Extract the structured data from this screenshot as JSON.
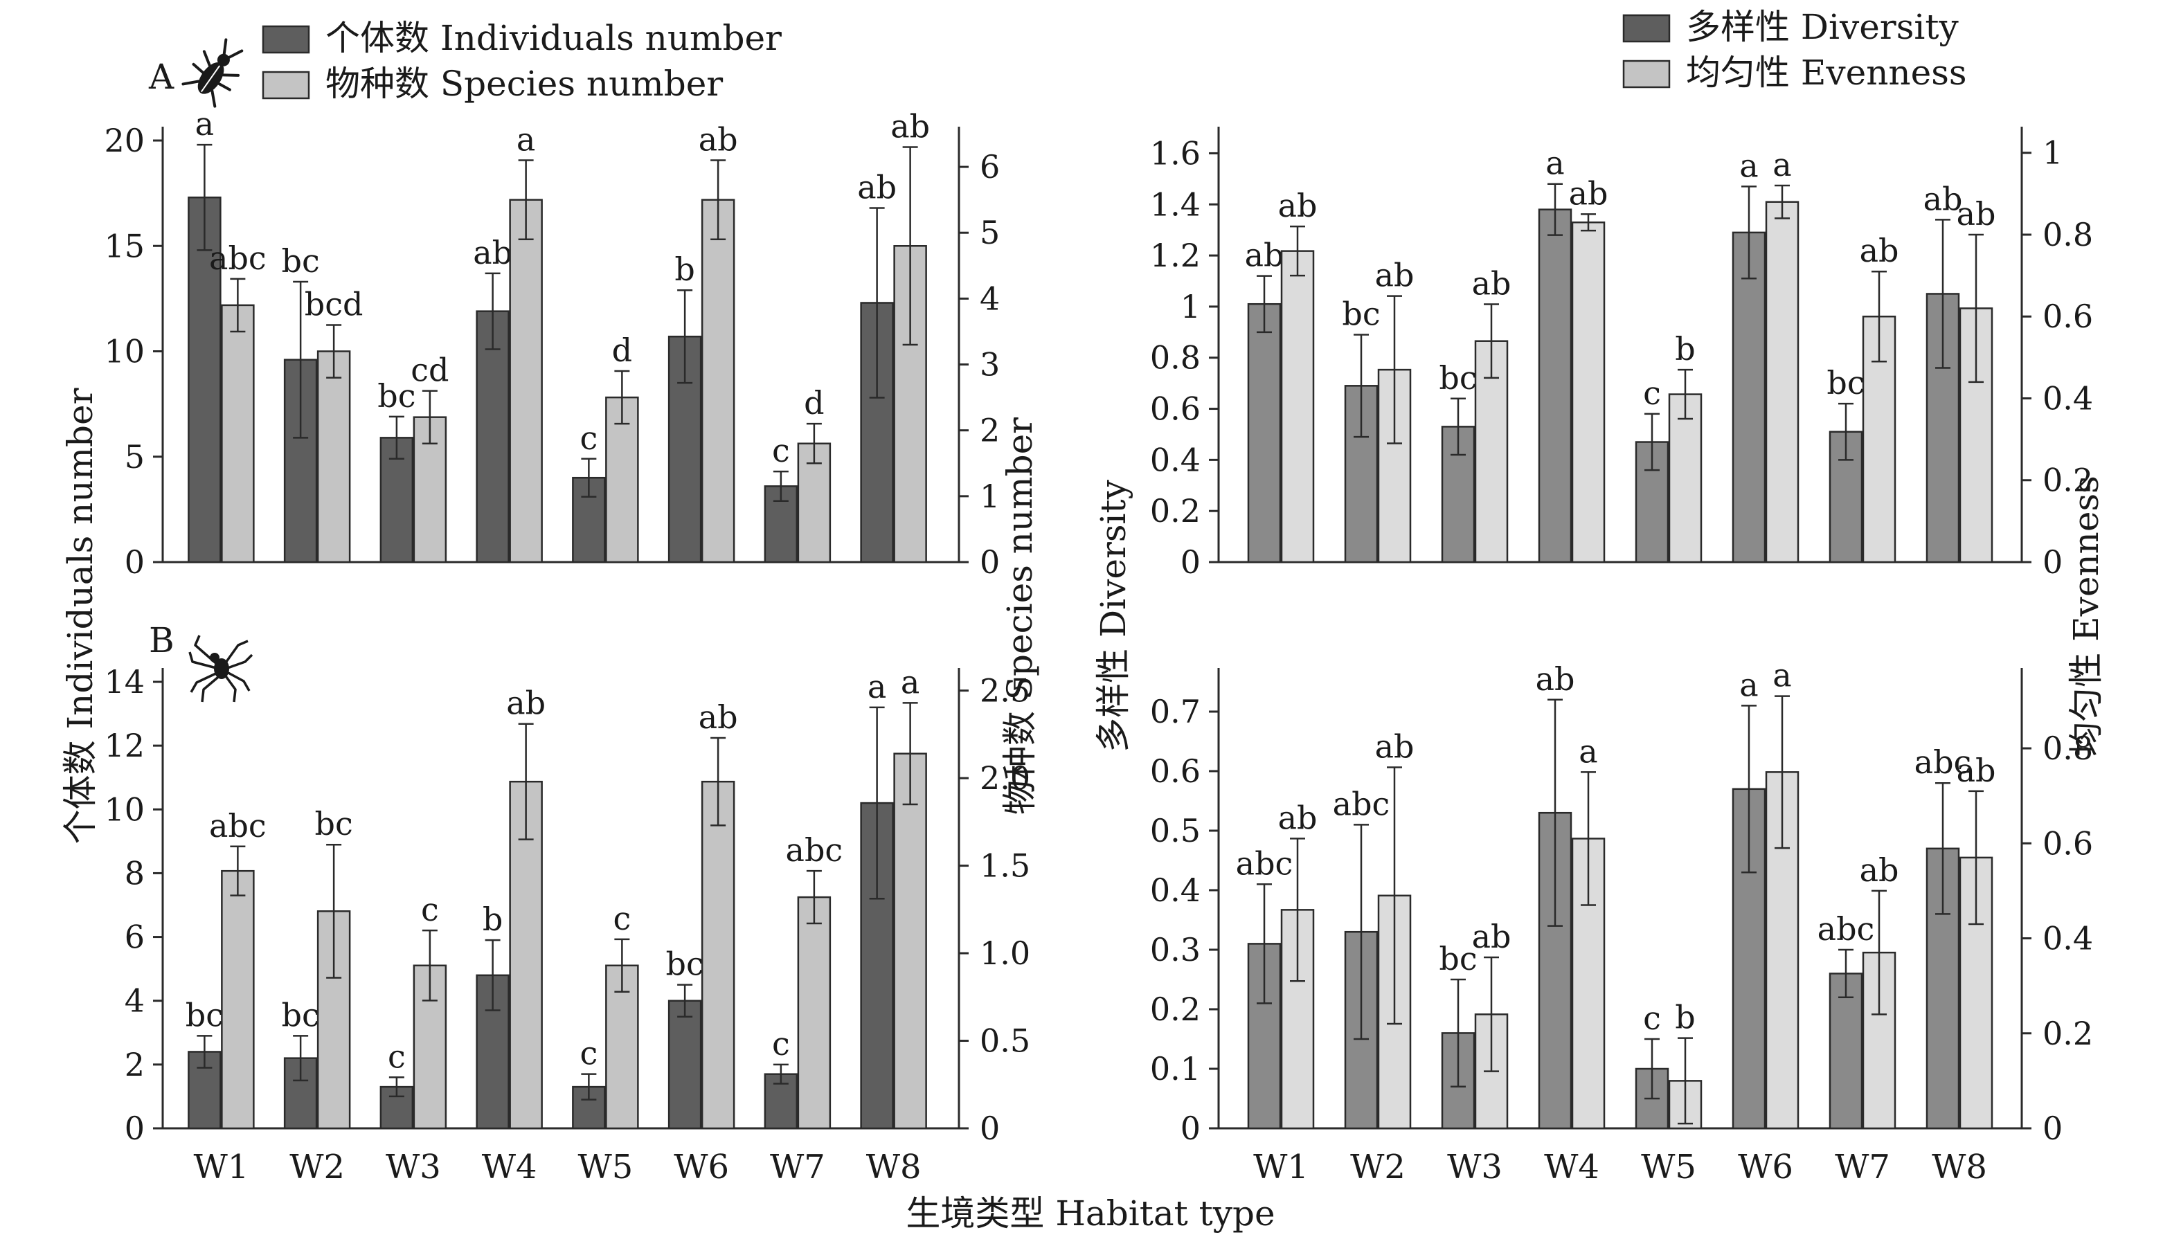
{
  "colors": {
    "dark": "#5e5e5e",
    "light": "#c4c4c4",
    "dark_div": "#8a8a8a",
    "light_div": "#dcdcdc",
    "ink": "#2a2a2a"
  },
  "icons": {
    "panel_a": "beetle-icon",
    "panel_b": "spider-icon"
  },
  "shared_xlabel": "生境类型 Habitat type",
  "chart_data": [
    {
      "type": "bar",
      "panel": "A",
      "categories": [
        "W1",
        "W2",
        "W3",
        "W4",
        "W5",
        "W6",
        "W7",
        "W8"
      ],
      "left_axis": {
        "label": "个体数 Individuals number",
        "ylim": [
          0,
          20
        ],
        "ticks": [
          0,
          5,
          10,
          15,
          20
        ]
      },
      "right_axis": {
        "label": "物种数 Species number",
        "ylim": [
          0,
          6.4
        ],
        "ticks": [
          0,
          1,
          2,
          3,
          4,
          5,
          6
        ]
      },
      "series": [
        {
          "name": "个体数 Individuals number",
          "axis": "left",
          "values": [
            17.3,
            9.6,
            5.9,
            11.9,
            4.0,
            10.7,
            3.6,
            12.3
          ],
          "errors": [
            2.5,
            3.7,
            1.0,
            1.8,
            0.9,
            2.2,
            0.7,
            4.5
          ],
          "labels": [
            "a",
            "bc",
            "bc",
            "ab",
            "c",
            "b",
            "c",
            "ab"
          ]
        },
        {
          "name": "物种数 Species number",
          "axis": "right",
          "values": [
            3.9,
            3.2,
            2.2,
            5.5,
            2.5,
            5.5,
            1.8,
            4.8
          ],
          "errors": [
            0.4,
            0.4,
            0.4,
            0.6,
            0.4,
            0.6,
            0.3,
            1.5
          ],
          "labels": [
            "abc",
            "bcd",
            "cd",
            "a",
            "d",
            "ab",
            "d",
            "ab"
          ]
        }
      ],
      "legend": [
        "个体数 Individuals number",
        "物种数 Species number"
      ]
    },
    {
      "type": "bar",
      "panel": "A-right",
      "categories": [
        "W1",
        "W2",
        "W3",
        "W4",
        "W5",
        "W6",
        "W7",
        "W8"
      ],
      "left_axis": {
        "label": "多样性 Diversity",
        "ylim": [
          0,
          1.65
        ],
        "ticks": [
          0,
          0.2,
          0.4,
          0.6,
          0.8,
          1.0,
          1.2,
          1.4,
          1.6
        ]
      },
      "right_axis": {
        "label": "均匀性 Evenness",
        "ylim": [
          0,
          1.03
        ],
        "ticks": [
          0,
          0.2,
          0.4,
          0.6,
          0.8,
          1.0
        ]
      },
      "series": [
        {
          "name": "多样性 Diversity",
          "axis": "left",
          "values": [
            1.01,
            0.69,
            0.53,
            1.38,
            0.47,
            1.29,
            0.51,
            1.05
          ],
          "errors": [
            0.11,
            0.2,
            0.11,
            0.1,
            0.11,
            0.18,
            0.11,
            0.29
          ],
          "labels": [
            "ab",
            "bc",
            "bc",
            "a",
            "c",
            "a",
            "bc",
            "ab"
          ]
        },
        {
          "name": "均匀性 Evenness",
          "axis": "right",
          "values": [
            0.76,
            0.47,
            0.54,
            0.83,
            0.41,
            0.88,
            0.6,
            0.62
          ],
          "errors": [
            0.06,
            0.18,
            0.09,
            0.02,
            0.06,
            0.04,
            0.11,
            0.18
          ],
          "labels": [
            "ab",
            "ab",
            "ab",
            "ab",
            "b",
            "a",
            "ab",
            "ab"
          ]
        }
      ],
      "legend": [
        "多样性 Diversity",
        "均匀性 Evenness"
      ]
    },
    {
      "type": "bar",
      "panel": "B",
      "categories": [
        "W1",
        "W2",
        "W3",
        "W4",
        "W5",
        "W6",
        "W7",
        "W8"
      ],
      "left_axis": {
        "label": "个体数 Individuals number",
        "ylim": [
          0,
          14
        ],
        "ticks": [
          0,
          2,
          4,
          6,
          8,
          10,
          12,
          14
        ]
      },
      "right_axis": {
        "label": "物种数 Species number",
        "ylim": [
          0,
          2.55
        ],
        "ticks": [
          "0",
          "0.5",
          "1.0",
          "1.5",
          "2.0",
          "2.5"
        ]
      },
      "series": [
        {
          "name": "个体数 Individuals number",
          "axis": "left",
          "values": [
            2.4,
            2.2,
            1.3,
            4.8,
            1.3,
            4.0,
            1.7,
            10.2
          ],
          "errors": [
            0.5,
            0.7,
            0.3,
            1.1,
            0.4,
            0.5,
            0.3,
            3.0
          ],
          "labels": [
            "bc",
            "bc",
            "c",
            "b",
            "c",
            "bc",
            "c",
            "a"
          ]
        },
        {
          "name": "物种数 Species number",
          "axis": "right",
          "values": [
            1.47,
            1.24,
            0.93,
            1.98,
            0.93,
            1.98,
            1.32,
            2.14
          ],
          "errors": [
            0.14,
            0.38,
            0.2,
            0.33,
            0.15,
            0.25,
            0.15,
            0.29
          ],
          "labels": [
            "abc",
            "bc",
            "c",
            "ab",
            "c",
            "ab",
            "abc",
            "a"
          ]
        }
      ]
    },
    {
      "type": "bar",
      "panel": "B-right",
      "categories": [
        "W1",
        "W2",
        "W3",
        "W4",
        "W5",
        "W6",
        "W7",
        "W8"
      ],
      "left_axis": {
        "label": "多样性 Diversity",
        "ylim": [
          0,
          0.75
        ],
        "ticks": [
          "0",
          "0.1",
          "0.2",
          "0.3",
          "0.4",
          "0.5",
          "0.6",
          "0.7"
        ]
      },
      "right_axis": {
        "label": "均匀性 Evenness",
        "ylim": [
          0,
          0.94
        ],
        "ticks": [
          "0",
          "0.2",
          "0.4",
          "0.6",
          "0.8"
        ]
      },
      "series": [
        {
          "name": "多样性 Diversity",
          "axis": "left",
          "values": [
            0.31,
            0.33,
            0.16,
            0.53,
            0.1,
            0.57,
            0.26,
            0.47
          ],
          "errors": [
            0.1,
            0.18,
            0.09,
            0.19,
            0.05,
            0.14,
            0.04,
            0.11
          ],
          "labels": [
            "abc",
            "abc",
            "bc",
            "ab",
            "c",
            "a",
            "abc",
            "abc"
          ]
        },
        {
          "name": "均匀性 Evenness",
          "axis": "right",
          "values": [
            0.46,
            0.49,
            0.24,
            0.61,
            0.1,
            0.75,
            0.37,
            0.57
          ],
          "errors": [
            0.15,
            0.27,
            0.12,
            0.14,
            0.09,
            0.16,
            0.13,
            0.14
          ],
          "labels": [
            "ab",
            "ab",
            "ab",
            "a",
            "b",
            "a",
            "ab",
            "ab"
          ]
        }
      ]
    }
  ]
}
